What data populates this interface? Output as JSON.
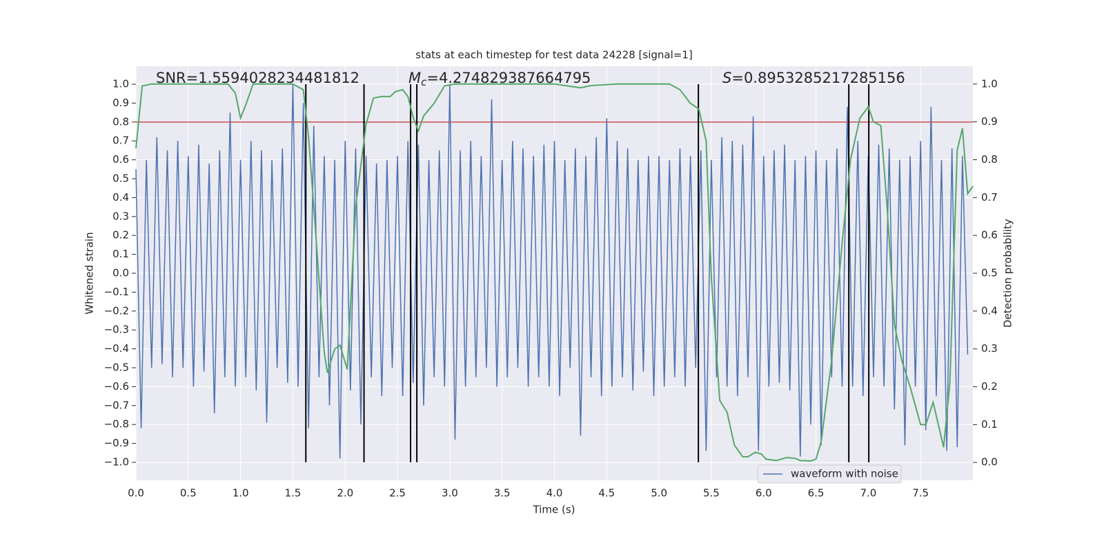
{
  "chart_data": {
    "type": "line",
    "title": "stats at each timestep for test data 24228 [signal=1]",
    "xlabel": "Time (s)",
    "ylabel": "Whitened strain",
    "y2label": "Detection probability",
    "xlim": [
      0,
      8.0
    ],
    "ylim": [
      -1.095,
      1.095
    ],
    "y2lim": [
      -0.047,
      1.047
    ],
    "xticks": [
      {
        "value": 0,
        "label": "0.0"
      },
      {
        "value": 0.5,
        "label": "0.5"
      },
      {
        "value": 1,
        "label": "1.0"
      },
      {
        "value": 1.5,
        "label": "1.5"
      },
      {
        "value": 2,
        "label": "2.0"
      },
      {
        "value": 2.5,
        "label": "2.5"
      },
      {
        "value": 3,
        "label": "3.0"
      },
      {
        "value": 3.5,
        "label": "3.5"
      },
      {
        "value": 4,
        "label": "4.0"
      },
      {
        "value": 4.5,
        "label": "4.5"
      },
      {
        "value": 5,
        "label": "5.0"
      },
      {
        "value": 5.5,
        "label": "5.5"
      },
      {
        "value": 6,
        "label": "6.0"
      },
      {
        "value": 6.5,
        "label": "6.5"
      },
      {
        "value": 7,
        "label": "7.0"
      },
      {
        "value": 7.5,
        "label": "7.5"
      }
    ],
    "yticks": [
      {
        "value": 1,
        "label": "1.0"
      },
      {
        "value": 0.9,
        "label": "0.9"
      },
      {
        "value": 0.8,
        "label": "0.8"
      },
      {
        "value": 0.7,
        "label": "0.7"
      },
      {
        "value": 0.6,
        "label": "0.6"
      },
      {
        "value": 0.5,
        "label": "0.5"
      },
      {
        "value": 0.4,
        "label": "0.4"
      },
      {
        "value": 0.3,
        "label": "0.3"
      },
      {
        "value": 0.2,
        "label": "0.2"
      },
      {
        "value": 0.1,
        "label": "0.1"
      },
      {
        "value": 0,
        "label": "0.0"
      },
      {
        "value": -0.1,
        "label": "−0.1"
      },
      {
        "value": -0.2,
        "label": "−0.2"
      },
      {
        "value": -0.3,
        "label": "−0.3"
      },
      {
        "value": -0.4,
        "label": "−0.4"
      },
      {
        "value": -0.5,
        "label": "−0.5"
      },
      {
        "value": -0.6,
        "label": "−0.6"
      },
      {
        "value": -0.7,
        "label": "−0.7"
      },
      {
        "value": -0.8,
        "label": "−0.8"
      },
      {
        "value": -0.9,
        "label": "−0.9"
      },
      {
        "value": -1,
        "label": "−1.0"
      }
    ],
    "y2ticks": [
      {
        "value": 1,
        "label": "1.0"
      },
      {
        "value": 0.9,
        "label": "0.9"
      },
      {
        "value": 0.8,
        "label": "0.8"
      },
      {
        "value": 0.7,
        "label": "0.7"
      },
      {
        "value": 0.6,
        "label": "0.6"
      },
      {
        "value": 0.5,
        "label": "0.5"
      },
      {
        "value": 0.4,
        "label": "0.4"
      },
      {
        "value": 0.3,
        "label": "0.3"
      },
      {
        "value": 0.2,
        "label": "0.2"
      },
      {
        "value": 0.1,
        "label": "0.1"
      },
      {
        "value": 0,
        "label": "0.0"
      }
    ],
    "grid": true,
    "legend": "lower right",
    "series": [
      {
        "name": "waveform with noise",
        "color": "#4c72b0",
        "x": [
          0,
          0.05,
          0.1,
          0.15,
          0.2,
          0.25,
          0.3,
          0.35,
          0.4,
          0.45,
          0.5,
          0.55,
          0.6,
          0.65,
          0.7,
          0.75,
          0.8,
          0.85,
          0.9,
          0.95,
          1,
          1.05,
          1.1,
          1.15,
          1.2,
          1.25,
          1.3,
          1.35,
          1.4,
          1.45,
          1.5,
          1.55,
          1.6,
          1.65,
          1.7,
          1.75,
          1.8,
          1.85,
          1.9,
          1.95,
          2,
          2.05,
          2.1,
          2.15,
          2.2,
          2.25,
          2.3,
          2.35,
          2.4,
          2.45,
          2.5,
          2.55,
          2.6,
          2.65,
          2.7,
          2.75,
          2.8,
          2.85,
          2.9,
          2.95,
          3,
          3.05,
          3.1,
          3.15,
          3.2,
          3.25,
          3.3,
          3.35,
          3.4,
          3.45,
          3.5,
          3.55,
          3.6,
          3.65,
          3.7,
          3.75,
          3.8,
          3.85,
          3.9,
          3.95,
          4,
          4.05,
          4.1,
          4.15,
          4.2,
          4.25,
          4.3,
          4.35,
          4.4,
          4.45,
          4.5,
          4.55,
          4.6,
          4.65,
          4.7,
          4.75,
          4.8,
          4.85,
          4.9,
          4.95,
          5,
          5.05,
          5.1,
          5.15,
          5.2,
          5.25,
          5.3,
          5.35,
          5.4,
          5.45,
          5.5,
          5.55,
          5.6,
          5.65,
          5.7,
          5.75,
          5.8,
          5.85,
          5.9,
          5.95,
          6,
          6.05,
          6.1,
          6.15,
          6.2,
          6.25,
          6.3,
          6.35,
          6.4,
          6.45,
          6.5,
          6.55,
          6.6,
          6.65,
          6.7,
          6.75,
          6.8,
          6.85,
          6.9,
          6.95,
          7,
          7.05,
          7.1,
          7.15,
          7.2,
          7.25,
          7.3,
          7.35,
          7.4,
          7.45,
          7.5,
          7.55,
          7.6,
          7.65,
          7.7,
          7.75,
          7.8,
          7.85,
          7.9,
          7.95
        ],
        "values": [
          0.55,
          -0.82,
          0.6,
          -0.5,
          0.72,
          -0.48,
          0.65,
          -0.55,
          0.7,
          -0.5,
          0.62,
          -0.6,
          0.68,
          -0.52,
          0.58,
          -0.74,
          0.65,
          -0.55,
          0.85,
          -0.6,
          0.6,
          -0.55,
          0.7,
          -0.62,
          0.65,
          -0.79,
          0.6,
          -0.5,
          0.66,
          -0.58,
          1.0,
          -0.6,
          0.9,
          -0.82,
          0.78,
          -0.55,
          0.62,
          -0.7,
          0.6,
          -0.98,
          0.7,
          -0.62,
          0.66,
          -0.8,
          0.62,
          -0.55,
          0.58,
          -0.65,
          0.6,
          -0.5,
          0.62,
          -0.65,
          0.7,
          -0.58,
          0.68,
          -0.7,
          0.6,
          -0.55,
          0.65,
          -0.6,
          1.0,
          -0.88,
          0.65,
          -0.6,
          0.7,
          -0.55,
          0.62,
          -0.5,
          0.92,
          -0.6,
          0.6,
          -0.55,
          0.7,
          -0.5,
          0.66,
          -0.6,
          0.62,
          -0.55,
          0.68,
          -0.6,
          0.7,
          -0.65,
          0.6,
          -0.5,
          0.66,
          -0.86,
          0.62,
          -0.55,
          0.72,
          -0.65,
          0.82,
          -0.6,
          0.7,
          -0.55,
          0.66,
          -0.62,
          0.6,
          -0.52,
          0.62,
          -0.65,
          0.62,
          -0.6,
          0.6,
          -0.55,
          0.66,
          -0.6,
          0.62,
          -0.5,
          0.65,
          -0.94,
          0.6,
          -0.55,
          0.72,
          -0.6,
          0.7,
          -0.65,
          0.68,
          -0.55,
          0.83,
          -0.94,
          0.62,
          -0.6,
          0.65,
          -0.58,
          0.68,
          -0.62,
          0.6,
          -0.97,
          0.62,
          -0.8,
          0.65,
          -0.91,
          0.6,
          -0.55,
          0.66,
          -0.6,
          0.88,
          -0.6,
          0.7,
          -0.65,
          0.62,
          -0.55,
          0.68,
          -0.6,
          0.66,
          -0.72,
          0.6,
          -0.91,
          0.62,
          -0.6,
          0.7,
          -0.83,
          0.88,
          -0.65,
          0.6,
          -0.94,
          0.66,
          -0.92,
          0.62,
          -0.43
        ]
      },
      {
        "color": "#55a868",
        "axis": "y2",
        "x": [
          0,
          0.06,
          0.15,
          0.8,
          0.88,
          0.95,
          1.0,
          1.05,
          1.12,
          1.5,
          1.6,
          1.65,
          1.72,
          1.8,
          1.83,
          1.9,
          1.95,
          2.02,
          2.1,
          2.2,
          2.27,
          2.35,
          2.43,
          2.48,
          2.55,
          2.6,
          2.65,
          2.7,
          2.75,
          2.85,
          2.95,
          3.05,
          4.0,
          4.25,
          4.35,
          4.6,
          5.1,
          5.2,
          5.3,
          5.38,
          5.45,
          5.5,
          5.58,
          5.65,
          5.72,
          5.8,
          5.85,
          5.92,
          5.98,
          6.02,
          6.12,
          6.22,
          6.3,
          6.35,
          6.45,
          6.5,
          6.55,
          6.65,
          6.75,
          6.83,
          6.92,
          7.0,
          7.05,
          7.12,
          7.18,
          7.25,
          7.32,
          7.4,
          7.5,
          7.55,
          7.62,
          7.72,
          7.78,
          7.85,
          7.9,
          7.95,
          8.0
        ],
        "values": [
          0.83,
          0.995,
          1.0,
          1.0,
          1.0,
          0.976,
          0.91,
          0.945,
          1.0,
          1.0,
          0.985,
          0.86,
          0.6,
          0.29,
          0.237,
          0.3,
          0.31,
          0.246,
          0.675,
          0.894,
          0.963,
          0.967,
          0.967,
          0.98,
          0.985,
          0.967,
          0.912,
          0.876,
          0.916,
          0.949,
          0.995,
          1.0,
          1.0,
          0.99,
          0.996,
          1.0,
          1.0,
          0.985,
          0.949,
          0.934,
          0.85,
          0.49,
          0.164,
          0.133,
          0.046,
          0.015,
          0.015,
          0.027,
          0.022,
          0.009,
          0.005,
          0.013,
          0.011,
          0.005,
          0.004,
          0.009,
          0.055,
          0.27,
          0.58,
          0.8,
          0.91,
          0.94,
          0.9,
          0.89,
          0.675,
          0.365,
          0.27,
          0.2,
          0.1,
          0.1,
          0.159,
          0.04,
          0.21,
          0.825,
          0.883,
          0.71,
          0.73
        ]
      }
    ],
    "hlines": [
      {
        "y": 0.8,
        "color": "#c44e52"
      }
    ],
    "vlines": {
      "color": "#000000",
      "ymin": -1.0,
      "ymax": 1.0,
      "x": [
        1.624,
        2.18,
        2.625,
        2.685,
        5.376,
        6.814,
        7.005
      ]
    },
    "annotations": [
      {
        "text": "SNR=1.5594028234481812"
      },
      {
        "symbol": "M",
        "subscript": "c",
        "text": "=4.274829387664795"
      },
      {
        "symbol": "S",
        "text": "=0.8953285217285156"
      }
    ]
  }
}
